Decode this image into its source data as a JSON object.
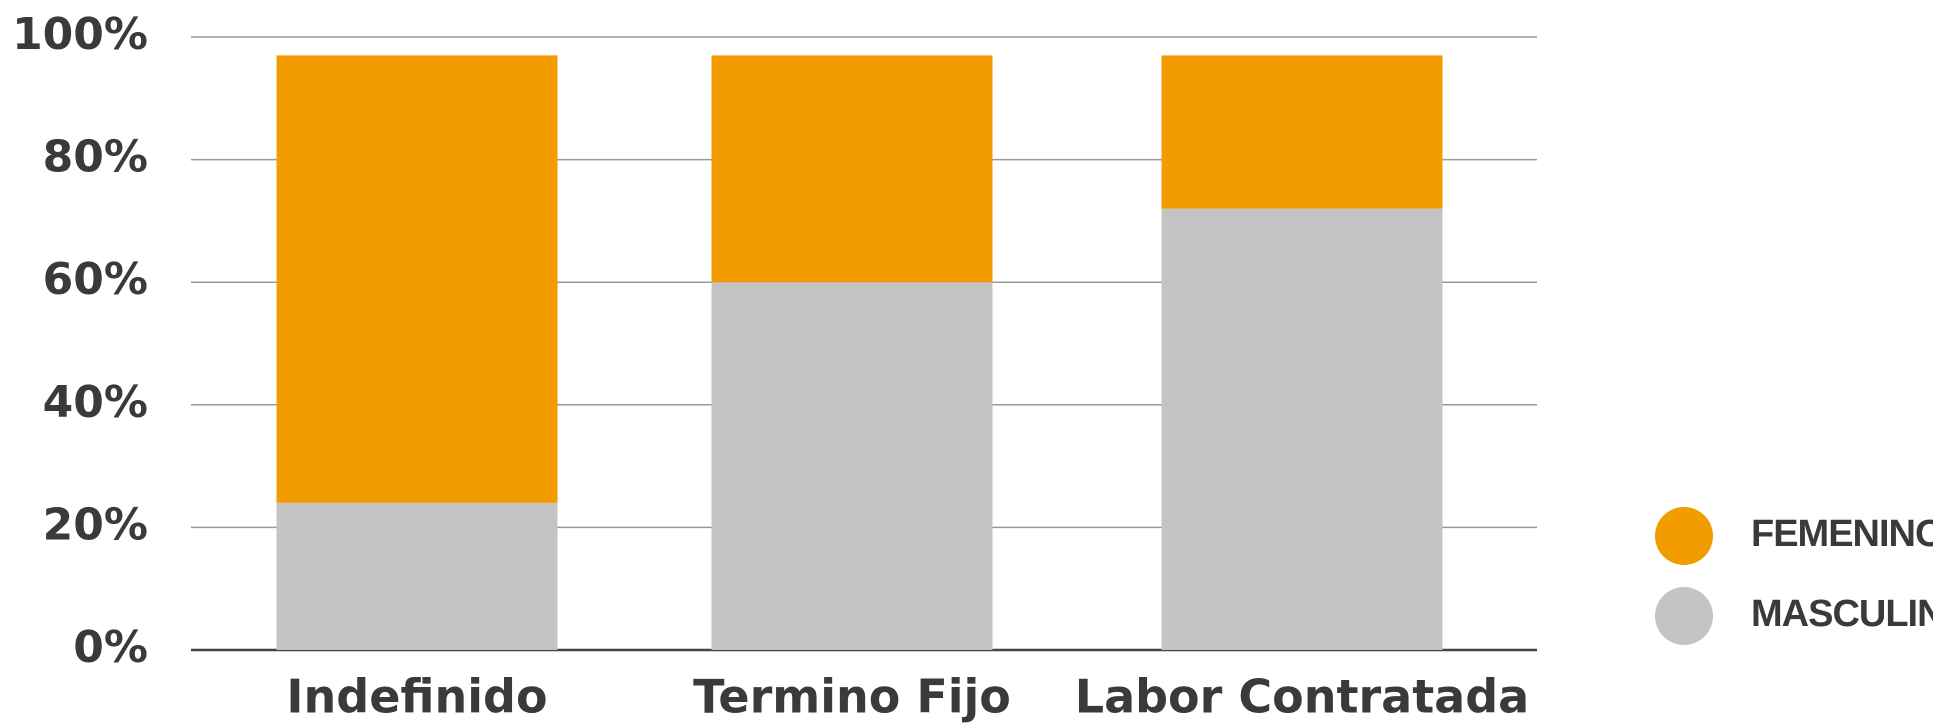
{
  "chart_data": {
    "type": "stacked_bar",
    "categories": [
      "Indefinido",
      "Termino Fijo",
      "Labor Contratada"
    ],
    "series": [
      {
        "name": "FEMENINO",
        "color": "#f39c00",
        "values": [
          73,
          37,
          25
        ]
      },
      {
        "name": "MASCULINO",
        "color": "#c4c4c4",
        "values": [
          24,
          60,
          72
        ]
      }
    ],
    "ylim": [
      0,
      100
    ],
    "yticks": [
      {
        "value": 0,
        "label": "0%"
      },
      {
        "value": 20,
        "label": "20%"
      },
      {
        "value": 40,
        "label": "40%"
      },
      {
        "value": 60,
        "label": "60%"
      },
      {
        "value": 80,
        "label": "80%"
      },
      {
        "value": 100,
        "label": "100%"
      }
    ],
    "grid": true,
    "legend": "right"
  }
}
